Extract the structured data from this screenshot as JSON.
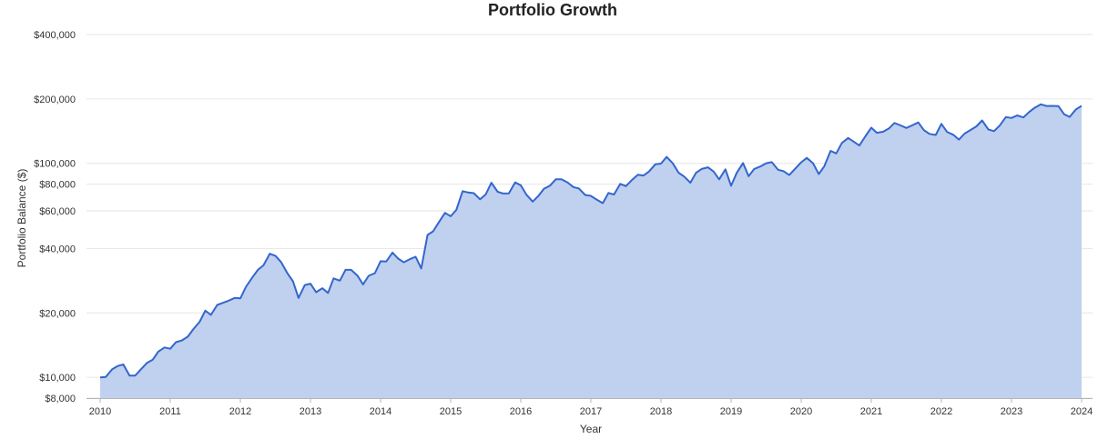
{
  "chart_data": {
    "type": "area",
    "title": "Portfolio Growth",
    "xlabel": "Year",
    "ylabel": "Portfolio Balance ($)",
    "y_scale": "log",
    "ylim": [
      8000,
      450000
    ],
    "xlim": [
      2010,
      2024
    ],
    "grid": true,
    "legend": "none",
    "colors": {
      "line": "#3366cc",
      "fill": "#c0d0ef",
      "grid": "#e6e6e6"
    },
    "y_ticks": [
      {
        "value": 8000,
        "label": "$8,000"
      },
      {
        "value": 10000,
        "label": "$10,000"
      },
      {
        "value": 20000,
        "label": "$20,000"
      },
      {
        "value": 40000,
        "label": "$40,000"
      },
      {
        "value": 60000,
        "label": "$60,000"
      },
      {
        "value": 80000,
        "label": "$80,000"
      },
      {
        "value": 100000,
        "label": "$100,000"
      },
      {
        "value": 200000,
        "label": "$200,000"
      },
      {
        "value": 400000,
        "label": "$400,000"
      }
    ],
    "x_ticks": [
      {
        "value": 2010,
        "label": "2010"
      },
      {
        "value": 2011,
        "label": "2011"
      },
      {
        "value": 2012,
        "label": "2012"
      },
      {
        "value": 2013,
        "label": "2013"
      },
      {
        "value": 2014,
        "label": "2014"
      },
      {
        "value": 2015,
        "label": "2015"
      },
      {
        "value": 2016,
        "label": "2016"
      },
      {
        "value": 2017,
        "label": "2017"
      },
      {
        "value": 2018,
        "label": "2018"
      },
      {
        "value": 2019,
        "label": "2019"
      },
      {
        "value": 2020,
        "label": "2020"
      },
      {
        "value": 2021,
        "label": "2021"
      },
      {
        "value": 2022,
        "label": "2022"
      },
      {
        "value": 2023,
        "label": "2023"
      },
      {
        "value": 2024,
        "label": "2024"
      }
    ],
    "series": [
      {
        "x": [
          2010.0,
          2010.08,
          2010.17,
          2010.25,
          2010.33,
          2010.42,
          2010.5,
          2010.58,
          2010.67,
          2010.75,
          2010.83,
          2010.92,
          2011.0,
          2011.08,
          2011.17,
          2011.25,
          2011.33,
          2011.42,
          2011.5,
          2011.58,
          2011.67,
          2011.75,
          2011.83,
          2011.92,
          2012.0,
          2012.08,
          2012.17,
          2012.25,
          2012.33,
          2012.42,
          2012.5,
          2012.58,
          2012.67,
          2012.75,
          2012.83,
          2012.92,
          2013.0,
          2013.08,
          2013.17,
          2013.25,
          2013.33,
          2013.42,
          2013.5,
          2013.58,
          2013.67,
          2013.75,
          2013.83,
          2013.92,
          2014.0,
          2014.08,
          2014.17,
          2014.25,
          2014.33,
          2014.42,
          2014.5,
          2014.58,
          2014.67,
          2014.75,
          2014.83,
          2014.92,
          2015.0,
          2015.08,
          2015.17,
          2015.25,
          2015.33,
          2015.42,
          2015.5,
          2015.58,
          2015.67,
          2015.75,
          2015.83,
          2015.92,
          2016.0,
          2016.08,
          2016.17,
          2016.25,
          2016.33,
          2016.42,
          2016.5,
          2016.58,
          2016.67,
          2016.75,
          2016.83,
          2016.92,
          2017.0,
          2017.08,
          2017.17,
          2017.25,
          2017.33,
          2017.42,
          2017.5,
          2017.58,
          2017.67,
          2017.75,
          2017.83,
          2017.92,
          2018.0,
          2018.08,
          2018.17,
          2018.25,
          2018.33,
          2018.42,
          2018.5,
          2018.58,
          2018.67,
          2018.75,
          2018.83,
          2018.92,
          2019.0,
          2019.08,
          2019.17,
          2019.25,
          2019.33,
          2019.42,
          2019.5,
          2019.58,
          2019.67,
          2019.75,
          2019.83,
          2019.92,
          2020.0,
          2020.08,
          2020.17,
          2020.25,
          2020.33,
          2020.42,
          2020.5,
          2020.58,
          2020.67,
          2020.75,
          2020.83,
          2020.92,
          2021.0,
          2021.08,
          2021.17,
          2021.25,
          2021.33,
          2021.42,
          2021.5,
          2021.58,
          2021.67,
          2021.75,
          2021.83,
          2021.92,
          2022.0,
          2022.08,
          2022.17,
          2022.25,
          2022.33,
          2022.42,
          2022.5,
          2022.58,
          2022.67,
          2022.75,
          2022.83,
          2022.92,
          2023.0,
          2023.08,
          2023.17,
          2023.25,
          2023.33,
          2023.42,
          2023.5,
          2023.58,
          2023.67,
          2023.75,
          2023.83,
          2023.92,
          2024.0
        ],
        "values": [
          10000,
          10050,
          10900,
          11300,
          11500,
          10200,
          10200,
          10900,
          11700,
          12100,
          13200,
          13800,
          13600,
          14600,
          14900,
          15500,
          16800,
          18200,
          20500,
          19600,
          21800,
          22300,
          22800,
          23500,
          23400,
          26500,
          29300,
          31800,
          33400,
          37800,
          37000,
          34600,
          30700,
          28100,
          23500,
          27000,
          27400,
          25000,
          26100,
          24800,
          29000,
          28300,
          31800,
          31800,
          29900,
          27200,
          29800,
          30700,
          34900,
          34800,
          38300,
          35900,
          34500,
          35700,
          36600,
          32300,
          46300,
          48200,
          53000,
          58700,
          56600,
          60600,
          74100,
          73100,
          72600,
          67900,
          71600,
          81200,
          73700,
          72300,
          72400,
          81500,
          79000,
          71400,
          66300,
          70400,
          76000,
          78800,
          84300,
          84300,
          81300,
          77500,
          76300,
          71200,
          70500,
          67800,
          65200,
          72700,
          71500,
          80200,
          78300,
          83300,
          88500,
          87800,
          91600,
          99100,
          99800,
          107200,
          99900,
          90500,
          86800,
          81200,
          90400,
          94200,
          95800,
          91600,
          84200,
          93800,
          78600,
          90300,
          100300,
          87200,
          94200,
          96800,
          100100,
          101300,
          93300,
          91900,
          88200,
          94800,
          101100,
          106100,
          100000,
          89100,
          97000,
          114400,
          111300,
          124600,
          131400,
          126300,
          121200,
          134400,
          146800,
          139000,
          140600,
          145500,
          154500,
          150400,
          146400,
          150400,
          155300,
          143000,
          137400,
          135800,
          152900,
          140400,
          136000,
          129200,
          137700,
          143400,
          148900,
          158700,
          144100,
          141500,
          150000,
          164600,
          163000,
          167500,
          164000,
          173700,
          181800,
          188800,
          185500,
          185600,
          185000,
          169700,
          164900,
          178800,
          185700
        ]
      }
    ]
  }
}
